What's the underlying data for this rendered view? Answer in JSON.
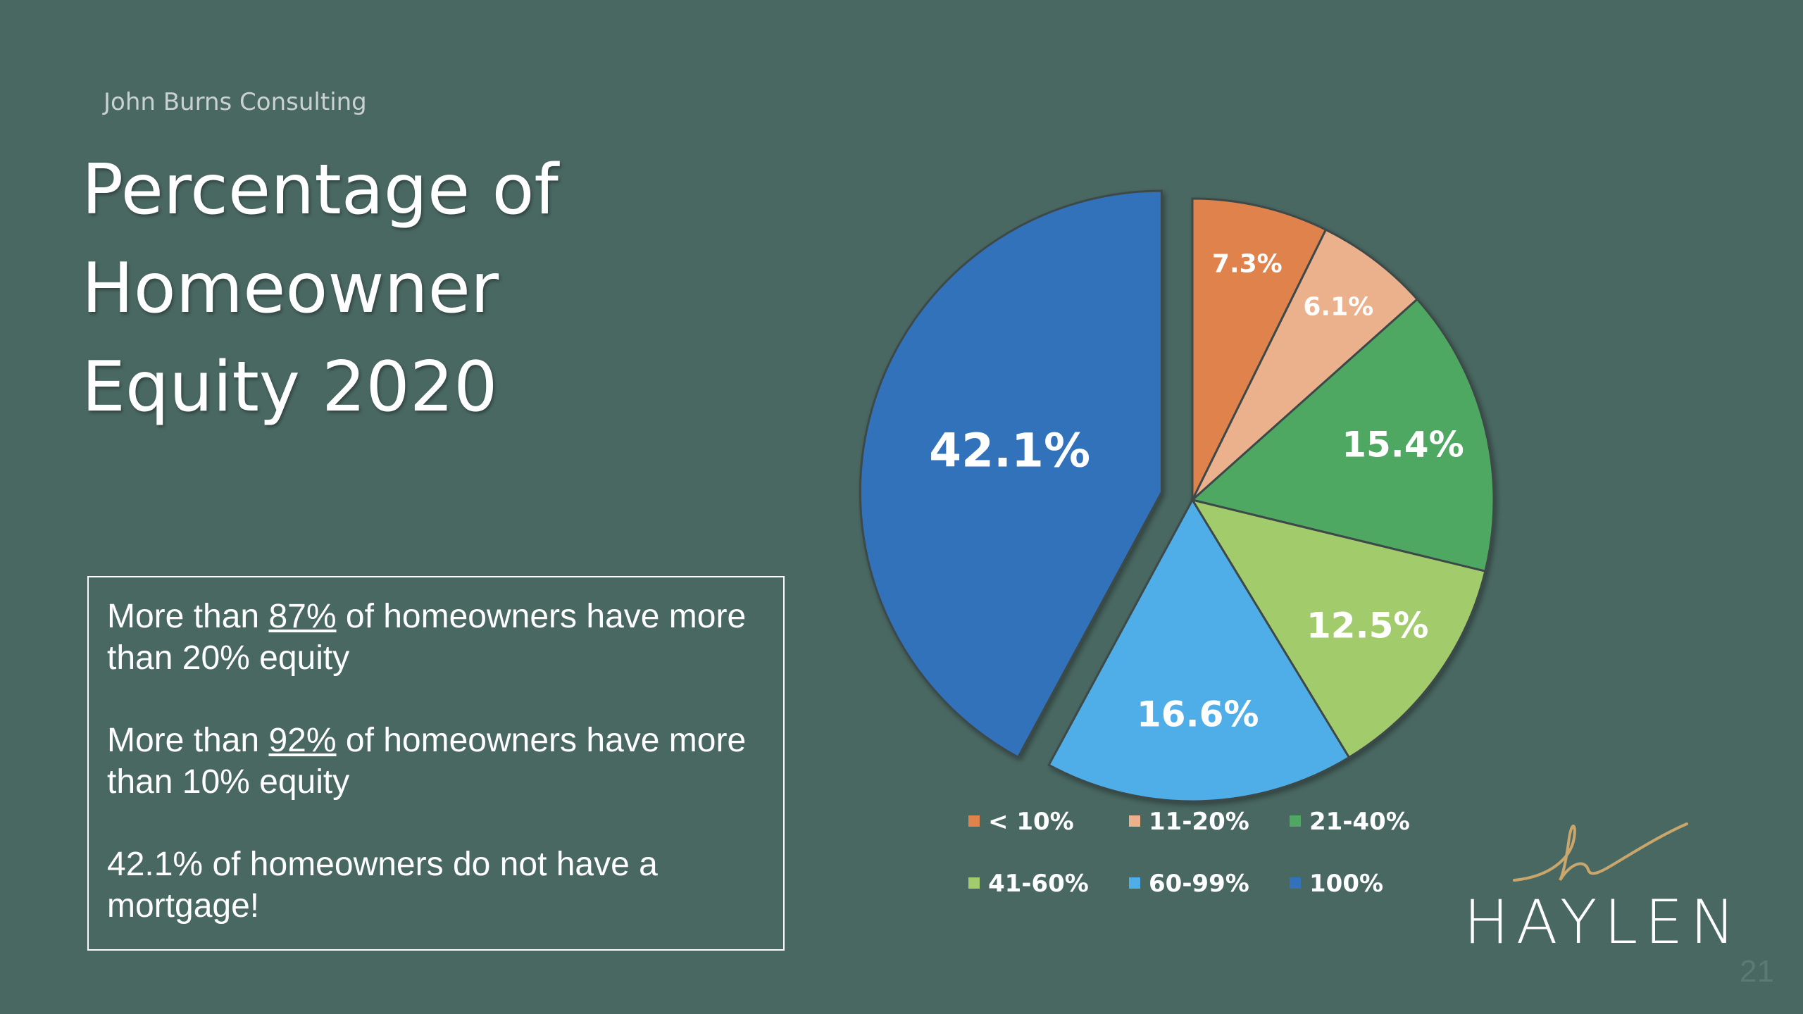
{
  "source": "John Burns Consulting",
  "title_lines": [
    "Percentage of",
    "Homeowner",
    "Equity 2020"
  ],
  "notes": {
    "line1_pre": "More than ",
    "line1_pct": "87%",
    "line1_post": " of homeowners have more than 20% equity",
    "line2_pre": "More than ",
    "line2_pct": "92%",
    "line2_post": " of homeowners have more than 10% equity",
    "line3": "42.1% of homeowners do not have a mortgage!"
  },
  "logo": {
    "text": "HAYLEN",
    "accent_color": "#c9a66b"
  },
  "page_number": "21",
  "chart_data": {
    "type": "pie",
    "title": "",
    "series": [
      {
        "name": "< 10%",
        "value": 7.3,
        "label": "7.3%",
        "color": "#e0824c"
      },
      {
        "name": "11-20%",
        "value": 6.1,
        "label": "6.1%",
        "color": "#ebb08c"
      },
      {
        "name": "21-40%",
        "value": 15.4,
        "label": "15.4%",
        "color": "#4fa862"
      },
      {
        "name": "41-60%",
        "value": 12.5,
        "label": "12.5%",
        "color": "#a2cc6c"
      },
      {
        "name": "60-99%",
        "value": 16.6,
        "label": "16.6%",
        "color": "#4faee8"
      },
      {
        "name": "100%",
        "value": 42.1,
        "label": "42.1%",
        "color": "#3272bb",
        "exploded": true
      }
    ],
    "legend_position": "bottom"
  }
}
